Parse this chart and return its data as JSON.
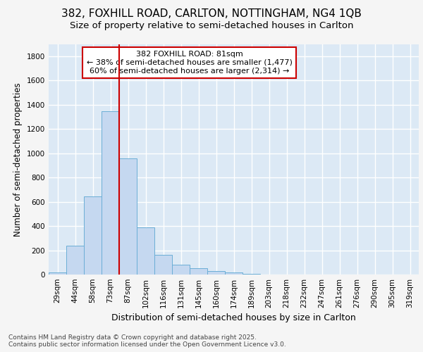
{
  "title": "382, FOXHILL ROAD, CARLTON, NOTTINGHAM, NG4 1QB",
  "subtitle": "Size of property relative to semi-detached houses in Carlton",
  "xlabel": "Distribution of semi-detached houses by size in Carlton",
  "ylabel": "Number of semi-detached properties",
  "categories": [
    "29sqm",
    "44sqm",
    "58sqm",
    "73sqm",
    "87sqm",
    "102sqm",
    "116sqm",
    "131sqm",
    "145sqm",
    "160sqm",
    "174sqm",
    "189sqm",
    "203sqm",
    "218sqm",
    "232sqm",
    "247sqm",
    "261sqm",
    "276sqm",
    "290sqm",
    "305sqm",
    "319sqm"
  ],
  "values": [
    20,
    235,
    645,
    1345,
    955,
    390,
    165,
    80,
    50,
    30,
    20,
    5,
    0,
    0,
    0,
    0,
    0,
    0,
    0,
    0,
    0
  ],
  "bar_color": "#c5d8f0",
  "bar_edge_color": "#6baed6",
  "vline_x": 3.5,
  "vline_color": "#cc0000",
  "annotation_text": "382 FOXHILL ROAD: 81sqm\n← 38% of semi-detached houses are smaller (1,477)\n60% of semi-detached houses are larger (2,314) →",
  "annotation_box_color": "#ffffff",
  "annotation_box_edge_color": "#cc0000",
  "annotation_fontsize": 8,
  "ylim": [
    0,
    1900
  ],
  "yticks": [
    0,
    200,
    400,
    600,
    800,
    1000,
    1200,
    1400,
    1600,
    1800
  ],
  "fig_bg_color": "#f5f5f5",
  "axes_bg_color": "#dce9f5",
  "grid_color": "#ffffff",
  "title_fontsize": 11,
  "subtitle_fontsize": 9.5,
  "xlabel_fontsize": 9,
  "ylabel_fontsize": 8.5,
  "tick_fontsize": 7.5,
  "footer_text": "Contains HM Land Registry data © Crown copyright and database right 2025.\nContains public sector information licensed under the Open Government Licence v3.0.",
  "footer_fontsize": 6.5
}
